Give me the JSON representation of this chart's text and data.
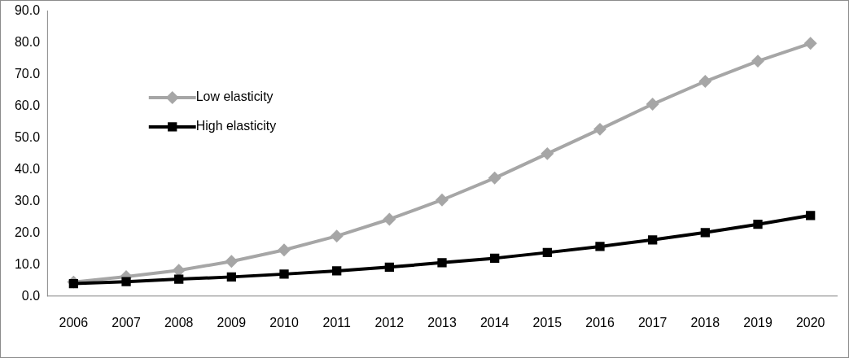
{
  "chart_data": {
    "type": "line",
    "categories": [
      "2006",
      "2007",
      "2008",
      "2009",
      "2010",
      "2011",
      "2012",
      "2013",
      "2014",
      "2015",
      "2016",
      "2017",
      "2018",
      "2019",
      "2020"
    ],
    "series": [
      {
        "name": "Low elasticity",
        "color": "#a6a6a6",
        "marker": "diamond",
        "values": [
          4.5,
          6.2,
          8.2,
          11.0,
          14.6,
          19.0,
          24.3,
          30.4,
          37.3,
          45.0,
          52.7,
          60.6,
          67.8,
          74.2,
          79.8
        ]
      },
      {
        "name": "High elasticity",
        "color": "#000000",
        "marker": "square",
        "values": [
          4.0,
          4.6,
          5.4,
          6.1,
          7.0,
          8.0,
          9.2,
          10.6,
          12.0,
          13.8,
          15.7,
          17.8,
          20.1,
          22.7,
          25.5
        ]
      }
    ],
    "ylim": [
      0,
      90
    ],
    "yticks": [
      {
        "value": 0,
        "label": "0.0"
      },
      {
        "value": 10,
        "label": "10.0"
      },
      {
        "value": 20,
        "label": "20.0"
      },
      {
        "value": 30,
        "label": "30.0"
      },
      {
        "value": 40,
        "label": "40.0"
      },
      {
        "value": 50,
        "label": "50.0"
      },
      {
        "value": 60,
        "label": "60.0"
      },
      {
        "value": 70,
        "label": "70.0"
      },
      {
        "value": 80,
        "label": "80.0"
      },
      {
        "value": 90,
        "label": "90.0"
      }
    ],
    "grid": false,
    "legend": "top left",
    "line_style": "solid"
  }
}
